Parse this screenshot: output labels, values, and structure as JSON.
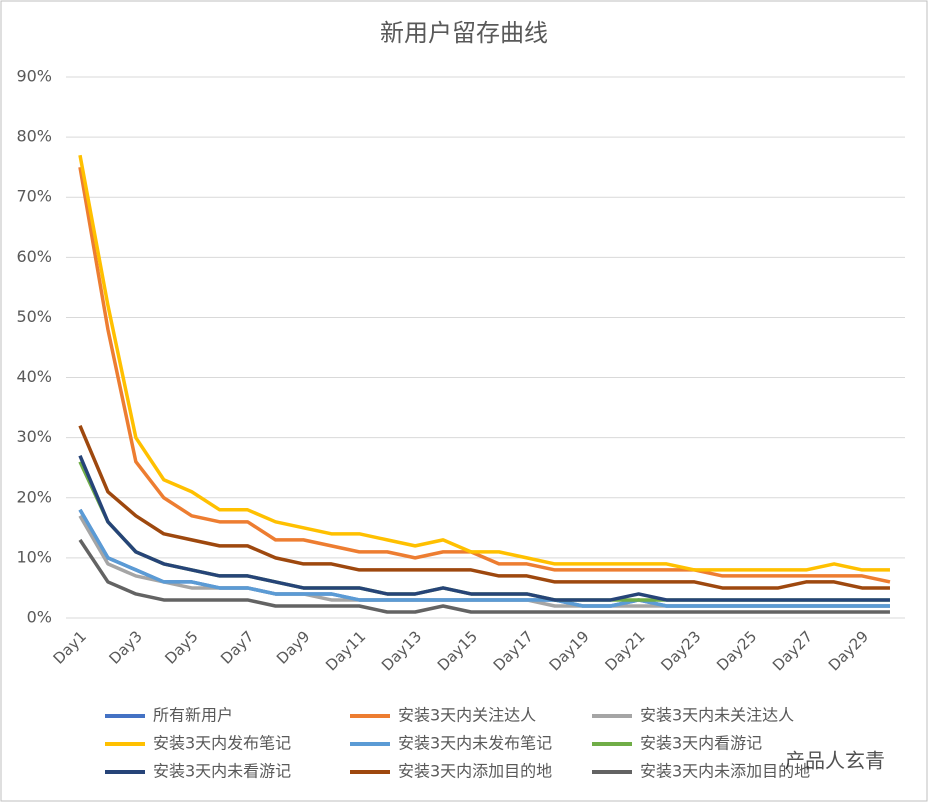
{
  "chart_data": {
    "type": "line",
    "title": "新用户留存曲线",
    "categories": [
      "Day1",
      null,
      "Day3",
      null,
      "Day5",
      null,
      "Day7",
      null,
      "Day9",
      null,
      "Day11",
      null,
      "Day13",
      null,
      "Day15",
      null,
      "Day17",
      null,
      "Day19",
      null,
      "Day21",
      null,
      "Day23",
      null,
      "Day25",
      null,
      "Day27",
      null,
      "Day29",
      null
    ],
    "ylim": [
      0,
      90
    ],
    "yticks": [
      {
        "value": 0,
        "label": "0%"
      },
      {
        "value": 10,
        "label": "10%"
      },
      {
        "value": 20,
        "label": "20%"
      },
      {
        "value": 30,
        "label": "30%"
      },
      {
        "value": 40,
        "label": "40%"
      },
      {
        "value": 50,
        "label": "50%"
      },
      {
        "value": 60,
        "label": "60%"
      },
      {
        "value": 70,
        "label": "70%"
      },
      {
        "value": 80,
        "label": "80%"
      },
      {
        "value": 90,
        "label": "90%"
      }
    ],
    "grid": true,
    "series": [
      {
        "name": "所有新用户",
        "color": "#4472c4",
        "values": [
          18,
          10,
          8,
          6,
          6,
          5,
          5,
          4,
          4,
          4,
          3,
          3,
          3,
          3,
          3,
          3,
          3,
          3,
          2,
          2,
          3,
          2,
          2,
          2,
          2,
          2,
          2,
          2,
          2,
          2
        ]
      },
      {
        "name": "安装3天内关注达人",
        "color": "#ed7d31",
        "values": [
          75,
          48,
          26,
          20,
          17,
          16,
          16,
          13,
          13,
          12,
          11,
          11,
          10,
          11,
          11,
          9,
          9,
          8,
          8,
          8,
          8,
          8,
          8,
          7,
          7,
          7,
          7,
          7,
          7,
          6
        ]
      },
      {
        "name": "安装3天内未关注达人",
        "color": "#a5a5a5",
        "values": [
          17,
          9,
          7,
          6,
          5,
          5,
          5,
          4,
          4,
          3,
          3,
          3,
          3,
          3,
          3,
          3,
          3,
          2,
          2,
          2,
          2,
          2,
          2,
          2,
          2,
          2,
          2,
          2,
          2,
          2
        ]
      },
      {
        "name": "安装3天内发布笔记",
        "color": "#ffc000",
        "values": [
          77,
          52,
          30,
          23,
          21,
          18,
          18,
          16,
          15,
          14,
          14,
          13,
          12,
          13,
          11,
          11,
          10,
          9,
          9,
          9,
          9,
          9,
          8,
          8,
          8,
          8,
          8,
          9,
          8,
          8
        ]
      },
      {
        "name": "安装3天内未发布笔记",
        "color": "#5b9bd5",
        "values": [
          18,
          10,
          8,
          6,
          6,
          5,
          5,
          4,
          4,
          4,
          3,
          3,
          3,
          3,
          3,
          3,
          3,
          3,
          2,
          2,
          3,
          2,
          2,
          2,
          2,
          2,
          2,
          2,
          2,
          2
        ]
      },
      {
        "name": "安装3天内看游记",
        "color": "#70ad47",
        "values": [
          26,
          16,
          11,
          9,
          8,
          7,
          7,
          6,
          5,
          5,
          5,
          4,
          4,
          5,
          4,
          4,
          4,
          3,
          3,
          3,
          3,
          3,
          3,
          3,
          3,
          3,
          3,
          3,
          3,
          3
        ]
      },
      {
        "name": "安装3天内未看游记",
        "color": "#264478",
        "values": [
          27,
          16,
          11,
          9,
          8,
          7,
          7,
          6,
          5,
          5,
          5,
          4,
          4,
          5,
          4,
          4,
          4,
          3,
          3,
          3,
          4,
          3,
          3,
          3,
          3,
          3,
          3,
          3,
          3,
          3
        ]
      },
      {
        "name": "安装3天内添加目的地",
        "color": "#9e480e",
        "values": [
          32,
          21,
          17,
          14,
          13,
          12,
          12,
          10,
          9,
          9,
          8,
          8,
          8,
          8,
          8,
          7,
          7,
          6,
          6,
          6,
          6,
          6,
          6,
          5,
          5,
          5,
          6,
          6,
          5,
          5
        ]
      },
      {
        "name": "安装3天内未添加目的地",
        "color": "#636363",
        "values": [
          13,
          6,
          4,
          3,
          3,
          3,
          3,
          2,
          2,
          2,
          2,
          1,
          1,
          2,
          1,
          1,
          1,
          1,
          1,
          1,
          1,
          1,
          1,
          1,
          1,
          1,
          1,
          1,
          1,
          1
        ]
      }
    ],
    "watermark": "产品人玄青"
  }
}
